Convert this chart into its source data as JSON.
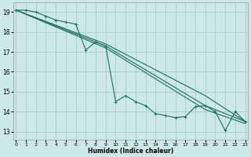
{
  "xlabel": "Humidex (Indice chaleur)",
  "background_color": "#cce8e8",
  "grid_color": "#b0d0d0",
  "line_color": "#1a7060",
  "xlim": [
    -0.3,
    23.3
  ],
  "ylim": [
    12.6,
    19.5
  ],
  "yticks": [
    13,
    14,
    15,
    16,
    17,
    18,
    19
  ],
  "xticks": [
    0,
    1,
    2,
    3,
    4,
    5,
    6,
    7,
    8,
    9,
    10,
    11,
    12,
    13,
    14,
    15,
    16,
    17,
    18,
    19,
    20,
    21,
    22,
    23
  ],
  "series": [
    {
      "x": [
        0,
        1,
        2,
        3,
        4,
        5,
        6,
        7,
        8,
        9,
        10,
        11,
        12,
        13,
        14,
        15,
        16,
        17,
        18,
        19,
        20,
        21,
        22,
        23
      ],
      "y": [
        19.1,
        19.1,
        19.0,
        18.8,
        18.6,
        18.5,
        18.4,
        17.1,
        17.5,
        17.3,
        14.5,
        14.8,
        14.5,
        14.3,
        13.9,
        13.8,
        13.7,
        13.75,
        14.25,
        14.3,
        14.0,
        13.05,
        14.0,
        13.5
      ]
    },
    {
      "x": [
        0,
        9,
        19,
        23
      ],
      "y": [
        19.1,
        17.4,
        14.8,
        13.5
      ]
    },
    {
      "x": [
        0,
        9,
        19,
        23
      ],
      "y": [
        19.1,
        17.3,
        14.3,
        13.5
      ]
    },
    {
      "x": [
        0,
        9,
        19,
        23
      ],
      "y": [
        19.1,
        17.2,
        14.1,
        13.4
      ]
    }
  ]
}
